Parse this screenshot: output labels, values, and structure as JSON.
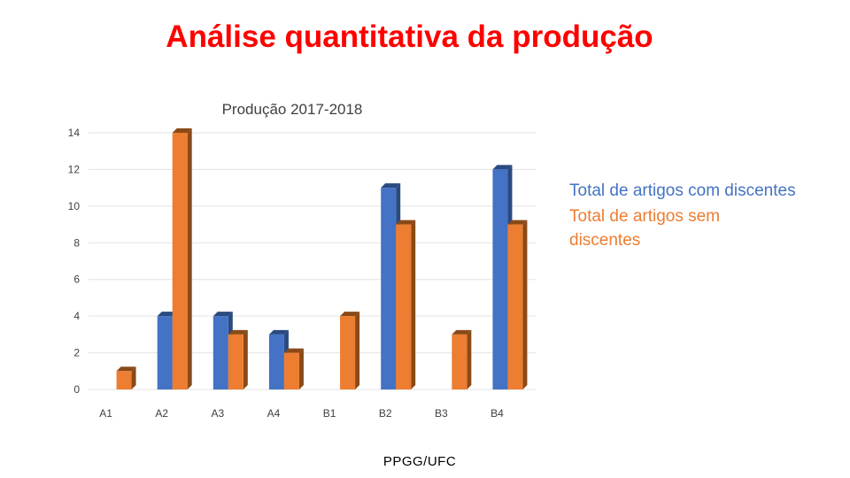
{
  "slide": {
    "title": "Análise quantitativa da produção",
    "footer": "PPGG/UFC"
  },
  "colors": {
    "title": "#ff0000",
    "series1": "#4472c4",
    "series2": "#ed7d31"
  },
  "chart_data": {
    "type": "bar",
    "title": "Produção 2017-2018",
    "categories": [
      "A1",
      "A2",
      "A3",
      "A4",
      "B1",
      "B2",
      "B3",
      "B4"
    ],
    "series": [
      {
        "name": "Total de artigos com discentes",
        "values": [
          0,
          4,
          4,
          3,
          0,
          11,
          0,
          12
        ]
      },
      {
        "name": "Total de artigos sem discentes",
        "values": [
          1,
          14,
          3,
          2,
          4,
          9,
          3,
          9
        ]
      }
    ],
    "yticks": [
      "0",
      "2",
      "4",
      "6",
      "8",
      "10",
      "12",
      "14"
    ],
    "ylim": [
      0,
      14
    ],
    "grid": true,
    "legend": "right",
    "style": "3d-column"
  }
}
